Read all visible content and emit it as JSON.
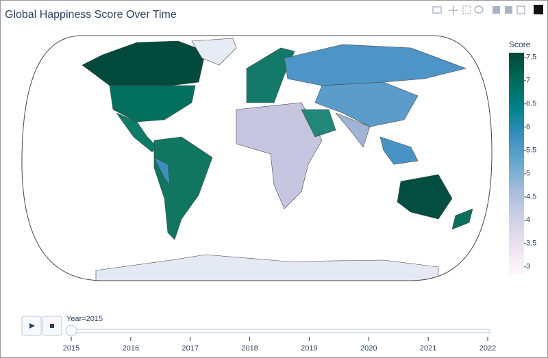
{
  "title": "Global Happiness Score Over Time",
  "colorbar": {
    "title": "Score",
    "range": [
      2.85,
      7.6
    ],
    "ticks": [
      3,
      3.5,
      4,
      4.5,
      5,
      5.5,
      6,
      6.5,
      7,
      7.5
    ],
    "colorscale": [
      "#fff7fb",
      "#ece2f0",
      "#d0d1e6",
      "#a6bddb",
      "#67a9cf",
      "#3690c0",
      "#02818a",
      "#016c59",
      "#014636"
    ]
  },
  "slider": {
    "label": "Year=2015",
    "steps": [
      2015,
      2016,
      2017,
      2018,
      2019,
      2020,
      2021,
      2022
    ]
  }
}
